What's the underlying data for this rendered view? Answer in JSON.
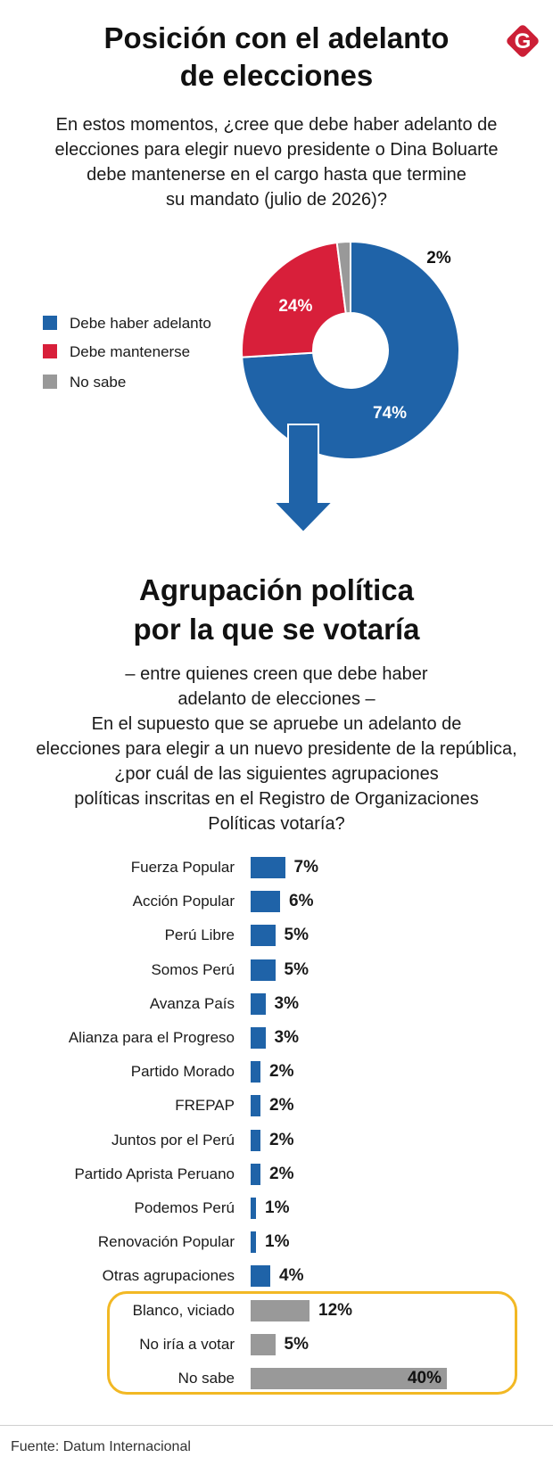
{
  "header": {
    "title_line1": "Posición con el adelanto",
    "title_line2": "de elecciones",
    "logo_letter": "G"
  },
  "question1": {
    "line1": "En estos momentos, ¿cree que debe haber adelanto de",
    "line2": "elecciones para elegir nuevo presidente o Dina Boluarte",
    "line3": "debe mantenerse en el cargo hasta que termine",
    "line4": "su mandato (julio de 2026)?"
  },
  "colors": {
    "blue": "#1f63a8",
    "red": "#d81f3a",
    "gray": "#999999",
    "highlight": "#f2b824",
    "logo": "#cc1f36"
  },
  "chart_data": [
    {
      "type": "pie",
      "donut": true,
      "categories": [
        "Debe haber adelanto",
        "Debe mantenerse",
        "No sabe"
      ],
      "values": [
        74,
        24,
        2
      ],
      "value_labels": [
        "74%",
        "24%",
        "2%"
      ]
    },
    {
      "type": "bar",
      "orientation": "horizontal",
      "title_line1": "Agrupación política",
      "title_line2": "por la que se votaría",
      "categories": [
        "Fuerza Popular",
        "Acción Popular",
        "Perú Libre",
        "Somos Perú",
        "Avanza País",
        "Alianza para el Progreso",
        "Partido Morado",
        "FREPAP",
        "Juntos por el Perú",
        "Partido Aprista Peruano",
        "Podemos Perú",
        "Renovación Popular",
        "Otras agrupaciones",
        "Blanco, viciado",
        "No iría a votar",
        "No sabe"
      ],
      "values": [
        7,
        6,
        5,
        5,
        3,
        3,
        2,
        2,
        2,
        2,
        1,
        1,
        4,
        12,
        5,
        40
      ],
      "value_labels": [
        "7%",
        "6%",
        "5%",
        "5%",
        "3%",
        "3%",
        "2%",
        "2%",
        "2%",
        "2%",
        "1%",
        "1%",
        "4%",
        "12%",
        "5%",
        "40%"
      ],
      "bar_colors": [
        "blue",
        "blue",
        "blue",
        "blue",
        "blue",
        "blue",
        "blue",
        "blue",
        "blue",
        "blue",
        "blue",
        "blue",
        "blue",
        "gray",
        "gray",
        "gray"
      ],
      "highlighted_categories": [
        "Blanco, viciado",
        "No iría a votar",
        "No sabe"
      ],
      "xlim": [
        0,
        40
      ]
    }
  ],
  "question2": {
    "line1": "– entre quienes creen que debe haber",
    "line2": "adelanto de elecciones –",
    "line3": "En el supuesto que se apruebe un adelanto de",
    "line4": "elecciones para elegir a un nuevo presidente de la república,",
    "line5": "¿por cuál de las siguientes agrupaciones",
    "line6": "políticas inscritas en el Registro de Organizaciones",
    "line7": "Políticas votaría?"
  },
  "footer": {
    "source": "Fuente: Datum Internacional"
  }
}
